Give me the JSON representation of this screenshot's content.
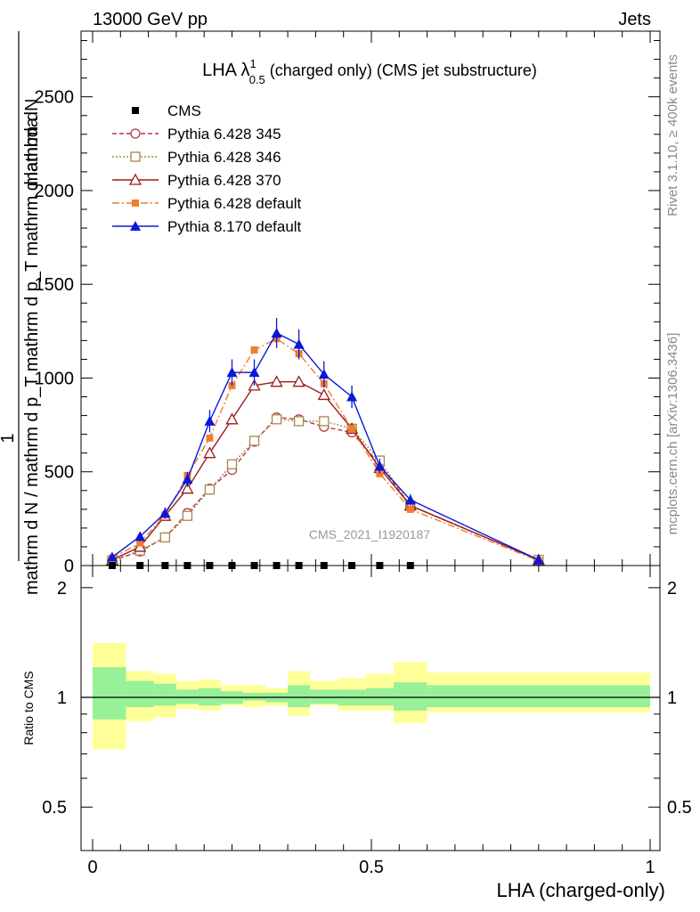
{
  "header": {
    "left": "13000 GeV pp",
    "right": "Jets"
  },
  "side_labels": {
    "rivet": "Rivet 3.1.10, ≥ 400k events",
    "mcplots": "mcplots.cern.ch [arXiv:1306.3436]"
  },
  "main_panel": {
    "title_prefix": "LHA λ",
    "title_sup": "1",
    "title_sub": "0.5",
    "title_suffix": " (charged only) (CMS jet substructure)",
    "ylabel_one": "1",
    "ylabel_num": "mathrm dN",
    "ylabel_den": "mathrm d N / mathrm d p_T mathrm d p_T mathrm d lambda",
    "watermark": "CMS_2021_I1920187",
    "yticks": [
      "0",
      "500",
      "1000",
      "1500",
      "2000",
      "2500"
    ]
  },
  "ratio_panel": {
    "ylabel": "Ratio to CMS",
    "yticks": [
      "0.5",
      "1",
      "2"
    ]
  },
  "x_axis": {
    "label": "LHA (charged-only)",
    "ticks": [
      "0",
      "0.5",
      "1"
    ]
  },
  "legend": [
    {
      "label": "CMS",
      "color": "#000000",
      "marker": "square-filled",
      "line": "none"
    },
    {
      "label": "Pythia 6.428 345",
      "color": "#b03a48",
      "marker": "circle-open",
      "line": "dashed"
    },
    {
      "label": "Pythia 6.428 346",
      "color": "#a8864a",
      "marker": "square-open",
      "line": "dotted"
    },
    {
      "label": "Pythia 6.428 370",
      "color": "#9b1b1b",
      "marker": "triangle-open",
      "line": "solid"
    },
    {
      "label": "Pythia 6.428 default",
      "color": "#f07c30",
      "marker": "square-filled",
      "line": "dashdot"
    },
    {
      "label": "Pythia 8.170 default",
      "color": "#0a18d8",
      "marker": "triangle-filled",
      "line": "solid"
    }
  ],
  "chart_data": {
    "type": "line",
    "xlabel": "LHA (charged-only)",
    "xlim": [
      0,
      1
    ],
    "ylim": [
      0,
      2850
    ],
    "ratio_ylim": [
      0.38,
      2.3
    ],
    "ratio_yscale": "log",
    "grid": false,
    "legend_position": "top-left",
    "cms": {
      "x": [
        0.035,
        0.085,
        0.13,
        0.17,
        0.21,
        0.25,
        0.29,
        0.33,
        0.37,
        0.415,
        0.465,
        0.515,
        0.57
      ],
      "y": [
        0,
        0,
        0,
        0,
        0,
        0,
        0,
        0,
        0,
        0,
        0,
        0,
        0
      ]
    },
    "series": [
      {
        "name": "Pythia 6.428 345",
        "x": [
          0.035,
          0.085,
          0.13,
          0.17,
          0.21,
          0.25,
          0.29,
          0.33,
          0.37,
          0.415,
          0.465,
          0.515,
          0.57,
          0.8
        ],
        "y": [
          25,
          75,
          150,
          280,
          410,
          510,
          660,
          790,
          780,
          740,
          710,
          540,
          320,
          30
        ]
      },
      {
        "name": "Pythia 6.428 346",
        "x": [
          0.035,
          0.085,
          0.13,
          0.17,
          0.21,
          0.25,
          0.29,
          0.33,
          0.37,
          0.415,
          0.465,
          0.515,
          0.57,
          0.8
        ],
        "y": [
          25,
          80,
          150,
          265,
          405,
          540,
          665,
          780,
          770,
          770,
          730,
          560,
          320,
          30
        ]
      },
      {
        "name": "Pythia 6.428 370",
        "x": [
          0.035,
          0.085,
          0.13,
          0.17,
          0.21,
          0.25,
          0.29,
          0.33,
          0.37,
          0.415,
          0.465,
          0.515,
          0.57,
          0.8
        ],
        "y": [
          30,
          100,
          265,
          410,
          600,
          780,
          960,
          980,
          980,
          910,
          730,
          520,
          320,
          30
        ]
      },
      {
        "name": "Pythia 6.428 default",
        "x": [
          0.035,
          0.085,
          0.13,
          0.17,
          0.21,
          0.25,
          0.29,
          0.33,
          0.37,
          0.415,
          0.465,
          0.515,
          0.57,
          0.8
        ],
        "y": [
          40,
          120,
          270,
          480,
          680,
          960,
          1150,
          1210,
          1130,
          970,
          730,
          490,
          300,
          25
        ]
      },
      {
        "name": "Pythia 8.170 default",
        "x": [
          0.035,
          0.085,
          0.13,
          0.17,
          0.21,
          0.25,
          0.29,
          0.33,
          0.37,
          0.415,
          0.465,
          0.515,
          0.57,
          0.8
        ],
        "y": [
          45,
          155,
          280,
          460,
          770,
          1030,
          1030,
          1240,
          1180,
          1020,
          900,
          530,
          350,
          30
        ],
        "yerr": [
          15,
          25,
          30,
          40,
          60,
          70,
          70,
          80,
          80,
          70,
          60,
          40,
          30,
          10
        ]
      }
    ],
    "ratio_bands": {
      "edges": [
        0,
        0.06,
        0.11,
        0.15,
        0.19,
        0.23,
        0.27,
        0.31,
        0.35,
        0.39,
        0.44,
        0.49,
        0.54,
        0.6,
        1.0
      ],
      "inner_upper": [
        1.21,
        1.11,
        1.09,
        1.05,
        1.06,
        1.04,
        1.03,
        1.03,
        1.08,
        1.05,
        1.05,
        1.06,
        1.1,
        1.08
      ],
      "inner_lower": [
        0.87,
        0.94,
        0.95,
        0.96,
        0.95,
        0.96,
        0.98,
        0.97,
        0.94,
        0.96,
        0.95,
        0.95,
        0.92,
        0.94
      ],
      "outer_upper": [
        1.41,
        1.18,
        1.16,
        1.11,
        1.12,
        1.08,
        1.08,
        1.06,
        1.18,
        1.11,
        1.13,
        1.16,
        1.25,
        1.17
      ],
      "outer_lower": [
        0.72,
        0.86,
        0.88,
        0.93,
        0.92,
        0.95,
        0.94,
        0.95,
        0.89,
        0.95,
        0.92,
        0.92,
        0.85,
        0.91
      ],
      "inner_color": "#98f098",
      "outer_color": "#ffff99"
    }
  }
}
